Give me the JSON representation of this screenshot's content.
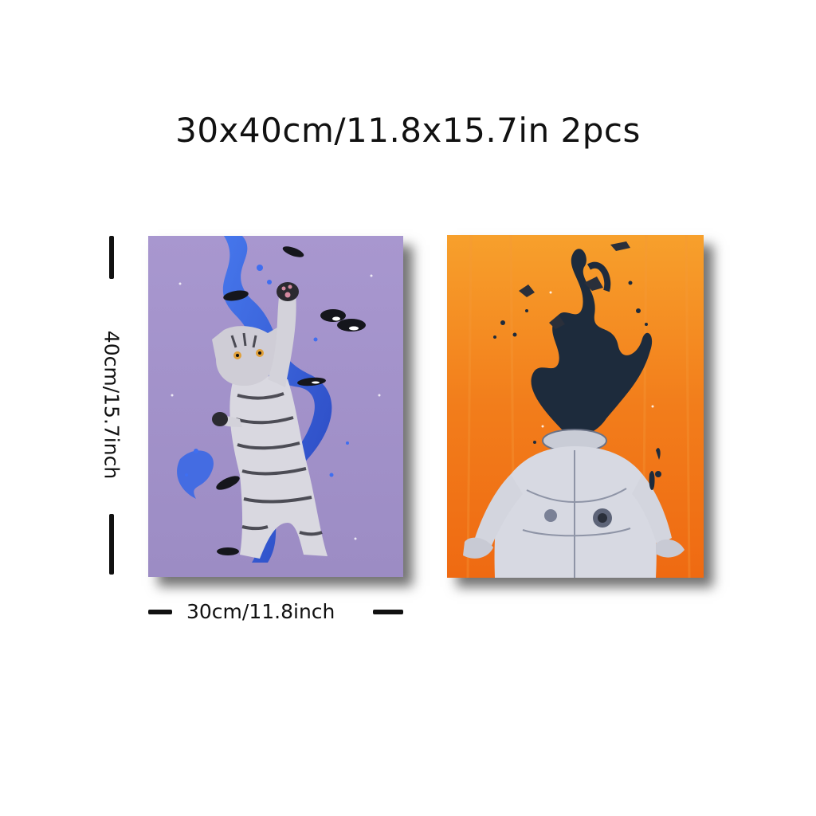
{
  "title": "30x40cm/11.8x15.7in 2pcs",
  "dimensions": {
    "height_label": "40cm/15.7inch",
    "width_label": "30cm/11.8inch"
  },
  "panels": [
    {
      "subject": "cat-with-orcas-and-water-splash",
      "background_color": "#a08fc8",
      "accent_color": "#2f5fe0"
    },
    {
      "subject": "astronaut-with-ink-splash-head",
      "background_color": "#f07a1a",
      "accent_color": "#1c2a3a"
    }
  ]
}
